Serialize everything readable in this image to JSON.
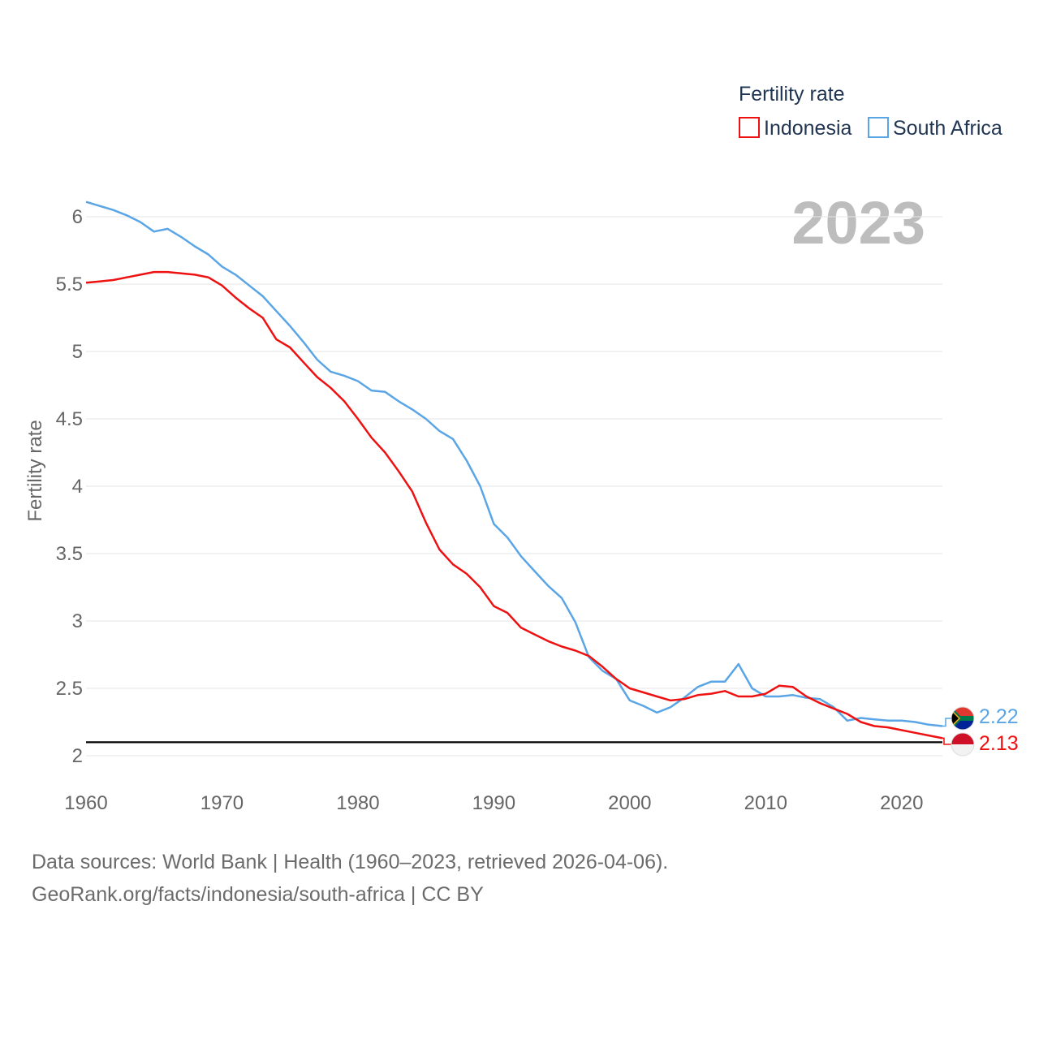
{
  "colors": {
    "indonesia": "#ee1111",
    "south_africa": "#5aa5e6",
    "grid": "#e6e6e6",
    "reference": "#000000"
  },
  "legend": {
    "title": "Fertility rate",
    "items": [
      {
        "name": "Indonesia",
        "color": "#ee1111"
      },
      {
        "name": "South Africa",
        "color": "#5aa5e6"
      }
    ]
  },
  "watermark_year": "2023",
  "end_labels": {
    "south_africa": "2.22",
    "indonesia": "2.13"
  },
  "flags": {
    "south_africa": "south-africa-flag-icon",
    "indonesia": "indonesia-flag-icon"
  },
  "footer": {
    "line1": "Data sources: World Bank | Health (1960–2023, retrieved 2026-04-06).",
    "line2": "GeoRank.org/facts/indonesia/south-africa | CC BY"
  },
  "chart_data": {
    "type": "line",
    "title": "",
    "xlabel": "",
    "ylabel": "Fertility rate",
    "xlim": [
      1960,
      2023
    ],
    "ylim": [
      2,
      6
    ],
    "yticks": [
      2,
      2.5,
      3,
      3.5,
      4,
      4.5,
      5,
      5.5,
      6
    ],
    "ytick_labels": [
      "2",
      "2.5",
      "3",
      "3.5",
      "4",
      "4.5",
      "5",
      "5.5",
      "6"
    ],
    "xticks": [
      1960,
      1970,
      1980,
      1990,
      2000,
      2010,
      2020
    ],
    "xtick_labels": [
      "1960",
      "1970",
      "1980",
      "1990",
      "2000",
      "2010",
      "2020"
    ],
    "reference_line": 2.1,
    "grid": true,
    "x": [
      1960,
      1961,
      1962,
      1963,
      1964,
      1965,
      1966,
      1967,
      1968,
      1969,
      1970,
      1971,
      1972,
      1973,
      1974,
      1975,
      1976,
      1977,
      1978,
      1979,
      1980,
      1981,
      1982,
      1983,
      1984,
      1985,
      1986,
      1987,
      1988,
      1989,
      1990,
      1991,
      1992,
      1993,
      1994,
      1995,
      1996,
      1997,
      1998,
      1999,
      2000,
      2001,
      2002,
      2003,
      2004,
      2005,
      2006,
      2007,
      2008,
      2009,
      2010,
      2011,
      2012,
      2013,
      2014,
      2015,
      2016,
      2017,
      2018,
      2019,
      2020,
      2021,
      2022,
      2023
    ],
    "series": [
      {
        "name": "Indonesia",
        "values": [
          5.51,
          5.52,
          5.53,
          5.55,
          5.57,
          5.59,
          5.59,
          5.58,
          5.57,
          5.55,
          5.49,
          5.4,
          5.32,
          5.25,
          5.09,
          5.03,
          4.92,
          4.81,
          4.73,
          4.63,
          4.5,
          4.36,
          4.25,
          4.11,
          3.96,
          3.73,
          3.53,
          3.42,
          3.35,
          3.25,
          3.11,
          3.06,
          2.95,
          2.9,
          2.85,
          2.81,
          2.78,
          2.74,
          2.66,
          2.57,
          2.5,
          2.47,
          2.44,
          2.41,
          2.42,
          2.45,
          2.46,
          2.48,
          2.44,
          2.44,
          2.46,
          2.52,
          2.51,
          2.44,
          2.39,
          2.35,
          2.31,
          2.25,
          2.22,
          2.21,
          2.19,
          2.17,
          2.15,
          2.13
        ]
      },
      {
        "name": "South Africa",
        "values": [
          6.11,
          6.08,
          6.05,
          6.01,
          5.96,
          5.89,
          5.91,
          5.85,
          5.78,
          5.72,
          5.63,
          5.57,
          5.49,
          5.41,
          5.3,
          5.19,
          5.07,
          4.94,
          4.85,
          4.82,
          4.78,
          4.71,
          4.7,
          4.63,
          4.57,
          4.5,
          4.41,
          4.35,
          4.19,
          4.0,
          3.72,
          3.62,
          3.48,
          3.37,
          3.26,
          3.17,
          2.99,
          2.73,
          2.63,
          2.57,
          2.41,
          2.37,
          2.32,
          2.36,
          2.43,
          2.51,
          2.55,
          2.55,
          2.68,
          2.5,
          2.44,
          2.44,
          2.45,
          2.43,
          2.42,
          2.36,
          2.26,
          2.28,
          2.27,
          2.26,
          2.26,
          2.25,
          2.23,
          2.22
        ]
      }
    ]
  }
}
